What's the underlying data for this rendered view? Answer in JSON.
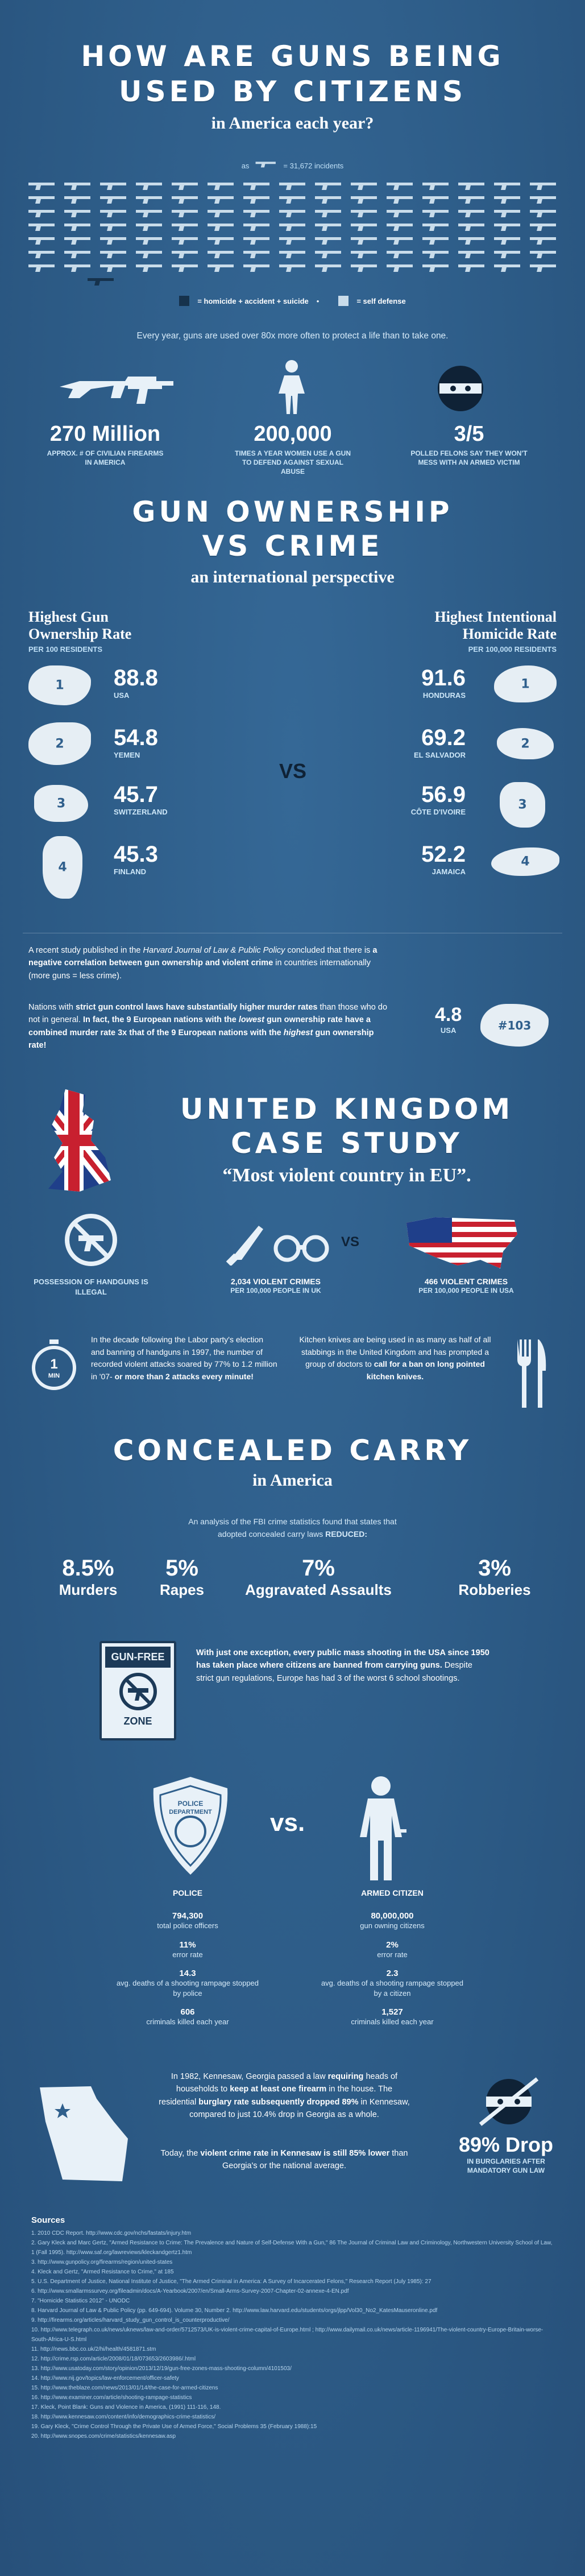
{
  "header": {
    "title_line1": "HOW ARE GUNS BEING",
    "title_line2": "USED BY CITIZENS",
    "subtitle": "in America each year?",
    "legend_as": "as",
    "legend_eq": "= 31,672 incidents",
    "legend_hom": "= homicide + accident + suicide",
    "legend_self": "= self defense",
    "dot": "•",
    "intro": "Every year, guns are used over 80x more often to protect a life than to take one."
  },
  "stats": [
    {
      "num": "270 Million",
      "cap": "APPROX. # OF CIVILIAN FIREARMS IN AMERICA"
    },
    {
      "num": "200,000",
      "cap": "TIMES A YEAR WOMEN USE A GUN TO DEFEND AGAINST SEXUAL ABUSE"
    },
    {
      "num": "3/5",
      "cap": "POLLED FELONS SAY THEY WON'T MESS WITH AN ARMED VICTIM"
    }
  ],
  "ownership": {
    "title_line1": "GUN OWNERSHIP",
    "title_line2": "VS CRIME",
    "subtitle": "an international perspective",
    "left_head": "Highest Gun Ownership Rate",
    "left_sub": "PER 100 RESIDENTS",
    "right_head": "Highest Intentional Homicide Rate",
    "right_sub": "PER 100,000 RESIDENTS",
    "vs": "VS",
    "left": [
      {
        "rank": "1",
        "value": "88.8",
        "country": "USA"
      },
      {
        "rank": "2",
        "value": "54.8",
        "country": "YEMEN"
      },
      {
        "rank": "3",
        "value": "45.7",
        "country": "SWITZERLAND"
      },
      {
        "rank": "4",
        "value": "45.3",
        "country": "FINLAND"
      }
    ],
    "right": [
      {
        "rank": "1",
        "value": "91.6",
        "country": "HONDURAS"
      },
      {
        "rank": "2",
        "value": "69.2",
        "country": "EL SALVADOR"
      },
      {
        "rank": "3",
        "value": "56.9",
        "country": "CÔTE D'IVOIRE"
      },
      {
        "rank": "4",
        "value": "52.2",
        "country": "JAMAICA"
      }
    ],
    "para1_a": "A recent study published in the ",
    "para1_b": "Harvard Journal of Law & Public Policy",
    "para1_c": " concluded that there is ",
    "para1_d": "a negative correlation between gun ownership and violent crime",
    "para1_e": " in countries internationally (more guns = less crime).",
    "para2_a": "Nations with ",
    "para2_b": "strict gun control laws have substantially higher murder rates",
    "para2_c": " than those who do not in general. ",
    "para2_d": "In fact, the 9 European nations with the ",
    "para2_e": "lowest",
    "para2_f": " gun ownership rate have a combined murder rate 3x that of the 9 European nations with the ",
    "para2_g": "highest",
    "para2_h": " gun ownership rate!",
    "usa_value": "4.8",
    "usa_label": "USA",
    "usa_rank": "#103"
  },
  "uk": {
    "title_line1": "UNITED KINGDOM",
    "title_line2": "CASE STUDY",
    "quote": "“Most violent country in EU”.",
    "handguns": "POSSESSION OF HANDGUNS IS ILLEGAL",
    "uk_crimes_num": "2,034 VIOLENT CRIMES",
    "uk_crimes_sub": "PER 100,000 PEOPLE IN UK",
    "vs": "VS",
    "usa_crimes_num": "466 VIOLENT CRIMES",
    "usa_crimes_sub": "PER 100,000 PEOPLE IN USA",
    "timer_num": "1",
    "timer_unit": "MIN",
    "para_a": "In the decade following the Labor party's election and banning of handguns in 1997, the number of recorded violent attacks soared by 77% to 1.2 million in '07- ",
    "para_b": "or more than 2 attacks every minute!",
    "knife_a": "Kitchen knives are being used in as many as half of all stabbings in the United Kingdom and has prompted a group of doctors to ",
    "knife_b": "call for a ban on long pointed kitchen knives."
  },
  "carry": {
    "title": "CONCEALED CARRY",
    "subtitle": "in America",
    "intro_a": "An analysis of the FBI crime statistics found that states that adopted concealed carry laws ",
    "intro_b": "REDUCED:",
    "items": [
      {
        "pct": "8.5%",
        "label": "Murders"
      },
      {
        "pct": "5%",
        "label": "Rapes"
      },
      {
        "pct": "7%",
        "label": "Aggravated Assaults"
      },
      {
        "pct": "3%",
        "label": "Robberies"
      }
    ],
    "sign_top": "GUN-FREE",
    "sign_bottom": "ZONE",
    "shoot_a": "With just one exception, every public mass shooting in the USA since 1950 has taken place ",
    "shoot_b": "where citizens are banned from carrying guns.",
    "shoot_c": " Despite strict gun regulations, Europe has had 3 of the worst 6 school shootings.",
    "badge_top": "POLICE",
    "badge_bottom": "DEPARTMENT",
    "vs": "vs.",
    "police_label": "POLICE",
    "armed_label": "ARMED CITIZEN",
    "police": [
      {
        "num": "794,300",
        "cap": "total police officers"
      },
      {
        "num": "11%",
        "cap": "error rate"
      },
      {
        "num": "14.3",
        "cap": "avg. deaths of a shooting rampage stopped by police"
      },
      {
        "num": "606",
        "cap": "criminals killed each year"
      }
    ],
    "citizen": [
      {
        "num": "80,000,000",
        "cap": "gun owning citizens"
      },
      {
        "num": "2%",
        "cap": "error rate"
      },
      {
        "num": "2.3",
        "cap": "avg. deaths of a shooting rampage stopped by a citizen"
      },
      {
        "num": "1,527",
        "cap": "criminals killed each year"
      }
    ]
  },
  "kennesaw": {
    "para_a": "In 1982, Kennesaw, Georgia passed a law ",
    "para_b": "requiring",
    "para_c": " heads of households to ",
    "para_d": "keep at least one firearm",
    "para_e": " in the house. The residential ",
    "para_f": "burglary rate subsequently dropped 89%",
    "para_g": " in Kennesaw, compared to just 10.4% drop in Georgia as a whole.",
    "para2_a": "Today, the ",
    "para2_b": "violent crime rate in Kennesaw is still 85% lower",
    "para2_c": " than Georgia's or the national average.",
    "drop": "89% Drop",
    "drop_sub": "IN BURGLARIES AFTER MANDATORY GUN LAW"
  },
  "sources": {
    "title": "Sources",
    "items": [
      "1. 2010 CDC Report. http://www.cdc.gov/nchs/fastats/injury.htm",
      "2. Gary Kleck and Marc Gertz, \"Armed Resistance to Crime: The Prevalence and Nature of Self-Defense With a Gun,\" 86 The Journal of Criminal Law and Criminology, Northwestern University School of Law, 1 (Fall 1995). http://www.saf.org/lawreviews/kleckandgertz1.htm",
      "3. http://www.gunpolicy.org/firearms/region/united-states",
      "4. Kleck and Gertz, \"Armed Resistance to Crime,\" at 185",
      "5. U.S. Department of Justice, National Institute of Justice, \"The Armed Criminal in America: A Survey of Incarcerated Felons,\" Research Report (July 1985): 27",
      "6. http://www.smallarmssurvey.org/fileadmin/docs/A-Yearbook/2007/en/Small-Arms-Survey-2007-Chapter-02-annexe-4-EN.pdf",
      "7. \"Homicide Statistics 2012\" - UNODC",
      "8. Harvard Journal of Law & Public Policy (pp. 649-694). Volume 30, Number 2. http://www.law.harvard.edu/students/orgs/jlpp/Vol30_No2_KatesMauseronline.pdf",
      "9. http://firearms.org/articles/harvard_study_gun_control_is_counterproductive/",
      "10. http://www.telegraph.co.uk/news/uknews/law-and-order/5712573/UK-is-violent-crime-capital-of-Europe.html ; http://www.dailymail.co.uk/news/article-1196941/The-violent-country-Europe-Britain-worse-South-Africa-U-S.html",
      "11. http://news.bbc.co.uk/2/hi/health/4581871.stm",
      "12. http://crime.rsp.com/article/2008/01/18/073653/2603986/.html",
      "13. http://www.usatoday.com/story/opinion/2013/12/19/gun-free-zones-mass-shooting-column/4101503/",
      "14. http://www.nij.gov/topics/law-enforcement/officer-safety",
      "15. http://www.theblaze.com/news/2013/01/14/the-case-for-armed-citizens",
      "16. http://www.examiner.com/article/shooting-rampage-statistics",
      "17. Kleck, Point Blank: Guns and Violence in America, (1991) 111-116, 148.",
      "18. http://www.kennesaw.com/content/info/demographics-crime-statistics/",
      "19. Gary Kleck, \"Crime Control Through the Private Use of Armed Force,\" Social Problems 35 (February 1988):15",
      "20. http://www.snopes.com/crime/statistics/kennesaw.asp"
    ]
  },
  "colors": {
    "background": "#2f5f8c",
    "accent_light": "#bfe0f7",
    "gun_light": "#c9dcea",
    "gun_dark": "#16324c"
  }
}
